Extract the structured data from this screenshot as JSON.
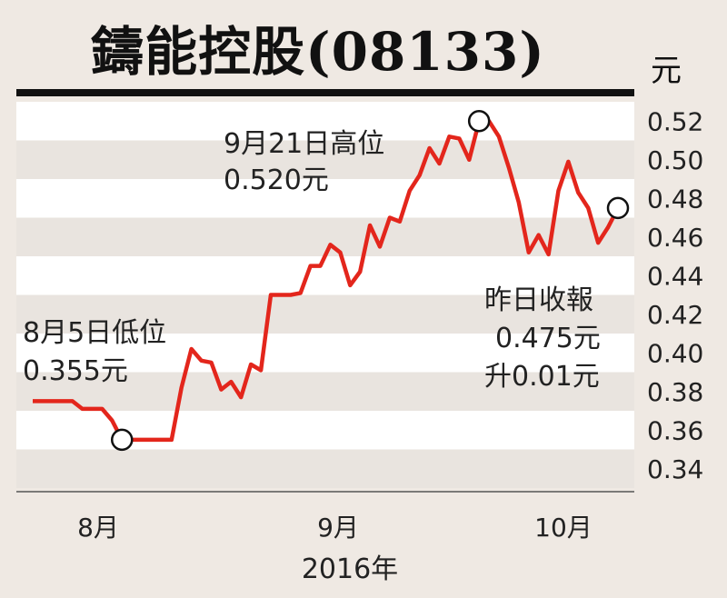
{
  "title": "鑄能控股(08133)",
  "unit": "元",
  "chart_data": {
    "type": "line",
    "xlabel": "2016年",
    "x_ticks": [
      "8月",
      "9月",
      "10月"
    ],
    "ylim": [
      0.33,
      0.53
    ],
    "y_ticks": [
      "0.34",
      "0.36",
      "0.38",
      "0.40",
      "0.42",
      "0.44",
      "0.46",
      "0.48",
      "0.50",
      "0.52"
    ],
    "grid": "horizontal bands",
    "series": [
      {
        "color": "#e3261c",
        "values": [
          0.375,
          0.375,
          0.375,
          0.375,
          0.375,
          0.371,
          0.371,
          0.371,
          0.365,
          0.355,
          0.355,
          0.355,
          0.355,
          0.355,
          0.355,
          0.382,
          0.402,
          0.396,
          0.395,
          0.381,
          0.385,
          0.377,
          0.394,
          0.391,
          0.43,
          0.43,
          0.43,
          0.431,
          0.445,
          0.445,
          0.456,
          0.452,
          0.435,
          0.442,
          0.466,
          0.455,
          0.47,
          0.468,
          0.484,
          0.492,
          0.506,
          0.498,
          0.512,
          0.511,
          0.5,
          0.52,
          0.52,
          0.512,
          0.496,
          0.478,
          0.452,
          0.461,
          0.451,
          0.484,
          0.499,
          0.483,
          0.475,
          0.457,
          0.465,
          0.475
        ]
      }
    ],
    "annotations": [
      {
        "label": "8月5日低位",
        "value_text": "0.355元",
        "value": 0.355
      },
      {
        "label": "9月21日高位",
        "value_text": "0.520元",
        "value": 0.52
      },
      {
        "label": "昨日收報",
        "value_text": "0.475元",
        "change_text": "升0.01元",
        "value": 0.475
      }
    ]
  }
}
